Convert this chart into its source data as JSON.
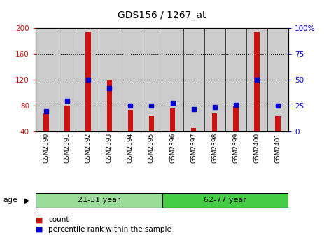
{
  "title": "GDS156 / 1267_at",
  "samples": [
    "GSM2390",
    "GSM2391",
    "GSM2392",
    "GSM2393",
    "GSM2394",
    "GSM2395",
    "GSM2396",
    "GSM2397",
    "GSM2398",
    "GSM2399",
    "GSM2400",
    "GSM2401"
  ],
  "counts": [
    68,
    80,
    194,
    120,
    74,
    64,
    76,
    46,
    68,
    80,
    194,
    64
  ],
  "percentiles": [
    20,
    30,
    50,
    42,
    25,
    25,
    28,
    22,
    24,
    26,
    50,
    25
  ],
  "ylim_left": [
    40,
    200
  ],
  "ylim_right": [
    0,
    100
  ],
  "yticks_left": [
    40,
    80,
    120,
    160,
    200
  ],
  "yticks_right": [
    0,
    25,
    50,
    75,
    100
  ],
  "groups": [
    {
      "label": "21-31 year",
      "start": 0,
      "end": 6,
      "color": "#99dd99"
    },
    {
      "label": "62-77 year",
      "start": 6,
      "end": 12,
      "color": "#44cc44"
    }
  ],
  "bar_color": "#cc1111",
  "dot_color": "#0000cc",
  "left_axis_color": "#cc1111",
  "right_axis_color": "#0000cc",
  "background_color": "#ffffff",
  "sample_bg_color": "#cccccc",
  "legend_count_label": "count",
  "legend_percentile_label": "percentile rank within the sample",
  "age_label": "age"
}
